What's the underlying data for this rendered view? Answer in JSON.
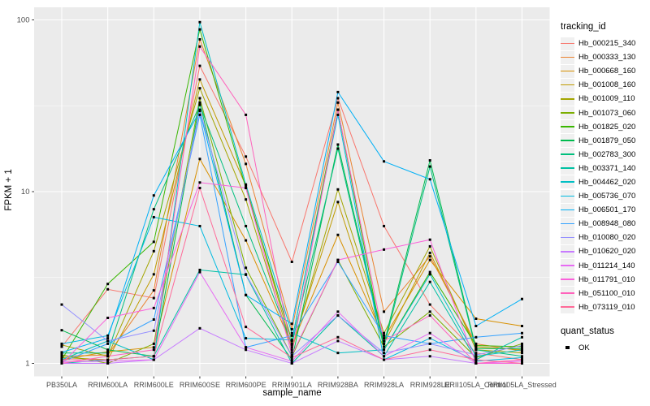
{
  "figure_type": "ggplot-line-chart",
  "legend": {
    "tracking_title": "tracking_id",
    "quant_title": "quant_status",
    "quant_items": [
      {
        "label": "OK",
        "marker": "black-square"
      }
    ]
  },
  "chart_data": {
    "type": "line",
    "title": "",
    "xlabel": "sample_name",
    "ylabel": "FPKM + 1",
    "y_scale": "log10",
    "y_ticks": [
      1,
      10,
      100
    ],
    "y_tick_labels": [
      "1",
      "10",
      "100"
    ],
    "y_minor_gridlines": [
      3.1623,
      31.623
    ],
    "ylim_log": [
      0.85,
      118
    ],
    "grid": "on",
    "legend_position": "right",
    "panel_background": "#EBEBEB",
    "gridline_color": "#FFFFFF",
    "tick_label_color": "#4D4D4D",
    "point_marker": {
      "shape": "square",
      "color": "#000000",
      "size": 3,
      "meaning": "quant_status OK"
    },
    "x_categories": [
      "PB350LA",
      "RRIM600LA",
      "RRIM600LE",
      "RRIM600SE",
      "RRIM600PE",
      "RRIM901LA",
      "RRIM928BA",
      "RRIM928LA",
      "RRIM928LE",
      "RRII105LA_Control",
      "RRII105LA_Stressed"
    ],
    "series": [
      {
        "name": "Hb_000215_340",
        "color": "#F8766D",
        "values": [
          1.25,
          2.7,
          2.4,
          54,
          16,
          3.9,
          35,
          6.3,
          2.2,
          1.15,
          1.05
        ]
      },
      {
        "name": "Hb_000333_130",
        "color": "#EA8331",
        "values": [
          1.1,
          1.12,
          2.66,
          77,
          14.5,
          1.58,
          33,
          2.0,
          4.2,
          1.3,
          1.18
        ]
      },
      {
        "name": "Hb_000668_160",
        "color": "#D89000",
        "values": [
          1.05,
          1.17,
          1.24,
          15.5,
          5.2,
          1.28,
          5.6,
          1.4,
          4.0,
          1.82,
          1.65
        ]
      },
      {
        "name": "Hb_001008_160",
        "color": "#C09B00",
        "values": [
          1.08,
          1.05,
          3.3,
          45,
          10.8,
          1.24,
          8.7,
          1.3,
          4.4,
          1.25,
          1.2
        ]
      },
      {
        "name": "Hb_001009_110",
        "color": "#A3A500",
        "values": [
          1.28,
          1.1,
          4.5,
          40,
          9.0,
          1.2,
          10.3,
          1.5,
          4.8,
          1.2,
          1.15
        ]
      },
      {
        "name": "Hb_001073_060",
        "color": "#7CAE00",
        "values": [
          1.12,
          1.0,
          1.3,
          35,
          3.6,
          1.1,
          4.0,
          1.25,
          2.0,
          1.08,
          1.3
        ]
      },
      {
        "name": "Hb_001825_020",
        "color": "#39B600",
        "values": [
          1.05,
          2.9,
          5.1,
          88,
          10.5,
          1.35,
          30,
          1.2,
          3.4,
          1.27,
          1.25
        ]
      },
      {
        "name": "Hb_001879_050",
        "color": "#00BB4E",
        "values": [
          1.56,
          1.2,
          1.1,
          33,
          2.5,
          1.05,
          18.8,
          1.3,
          15.2,
          1.22,
          1.22
        ]
      },
      {
        "name": "Hb_002783_300",
        "color": "#00BF7D",
        "values": [
          1.15,
          1.15,
          7.9,
          32,
          6.3,
          1.3,
          17.8,
          1.25,
          14.0,
          1.2,
          1.1
        ]
      },
      {
        "name": "Hb_003371_140",
        "color": "#00C1A3",
        "values": [
          1.0,
          1.05,
          1.1,
          3.5,
          3.28,
          1.0,
          1.9,
          1.1,
          2.98,
          1.05,
          1.42
        ]
      },
      {
        "name": "Hb_004462_020",
        "color": "#00BFC4",
        "values": [
          1.05,
          1.35,
          1.05,
          97,
          11.0,
          1.5,
          1.15,
          1.2,
          3.3,
          1.1,
          1.2
        ]
      },
      {
        "name": "Hb_005736_070",
        "color": "#00BAE0",
        "values": [
          1.3,
          1.45,
          7.1,
          6.3,
          1.4,
          1.37,
          28,
          1.05,
          1.4,
          1.03,
          1.08
        ]
      },
      {
        "name": "Hb_006501_170",
        "color": "#00B0F6",
        "values": [
          1.16,
          1.4,
          9.5,
          29.5,
          2.5,
          1.7,
          38,
          15,
          11.8,
          1.65,
          2.37
        ]
      },
      {
        "name": "Hb_008948_080",
        "color": "#35A2FF",
        "values": [
          1.02,
          1.3,
          1.8,
          28,
          1.24,
          1.45,
          3.9,
          1.45,
          1.3,
          1.42,
          1.5
        ]
      },
      {
        "name": "Hb_010080_020",
        "color": "#9590FF",
        "values": [
          2.2,
          1.35,
          1.55,
          30,
          3.3,
          1.1,
          1.9,
          1.15,
          1.3,
          1.12,
          1.27
        ]
      },
      {
        "name": "Hb_010620_020",
        "color": "#C77CFF",
        "values": [
          1.0,
          1.0,
          1.05,
          1.6,
          1.2,
          1.0,
          1.35,
          1.05,
          1.1,
          1.0,
          1.0
        ]
      },
      {
        "name": "Hb_011214_140",
        "color": "#E76BF3",
        "values": [
          1.02,
          1.03,
          1.05,
          3.4,
          1.24,
          1.03,
          2.0,
          1.1,
          1.5,
          1.0,
          1.03
        ]
      },
      {
        "name": "Hb_011791_010",
        "color": "#FA62DB",
        "values": [
          1.0,
          1.84,
          2.1,
          11.3,
          10.5,
          1.12,
          4.0,
          4.6,
          5.25,
          1.0,
          1.0
        ]
      },
      {
        "name": "Hb_051100_010",
        "color": "#FF62BC",
        "values": [
          1.0,
          1.1,
          1.2,
          70,
          28,
          1.16,
          30,
          1.35,
          1.9,
          1.0,
          1.05
        ]
      },
      {
        "name": "Hb_073119_010",
        "color": "#FF6A98",
        "values": [
          1.05,
          1.05,
          1.1,
          10.5,
          1.63,
          1.08,
          1.42,
          1.05,
          1.2,
          1.05,
          1.0
        ]
      }
    ]
  }
}
